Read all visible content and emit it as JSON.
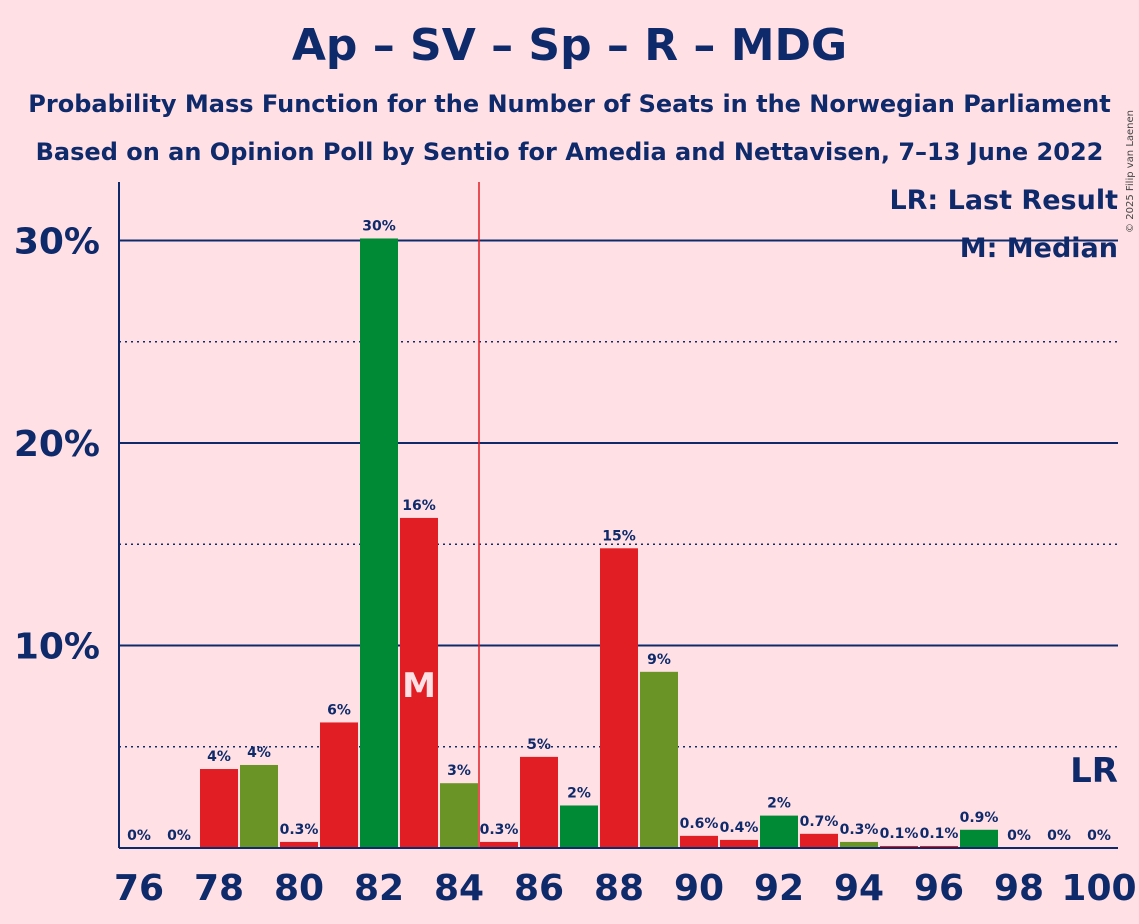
{
  "title": "Ap – SV – Sp – R – MDG",
  "subtitle1": "Probability Mass Function for the Number of Seats in the Norwegian Parliament",
  "subtitle2": "Based on an Opinion Poll by Sentio for Amedia and Nettavisen, 7–13 June 2022",
  "copyright": "© 2025 Filip van Laenen",
  "legend": {
    "lr": "LR: Last Result",
    "m": "M: Median"
  },
  "lr_marker_label": "LR",
  "median_marker_label": "M",
  "colors": {
    "red": "#e01e24",
    "green": "#008a35",
    "olive": "#6a9426",
    "axis": "#0f2a6b",
    "lr_line": "#e01e24"
  },
  "chart_data": {
    "type": "bar",
    "x": [
      76,
      77,
      78,
      79,
      80,
      81,
      82,
      83,
      84,
      85,
      86,
      87,
      88,
      89,
      90,
      91,
      92,
      93,
      94,
      95,
      96,
      97,
      98,
      99,
      100
    ],
    "values": [
      0,
      0,
      3.9,
      4.1,
      0.3,
      6.2,
      30.1,
      16.3,
      3.2,
      0.3,
      4.5,
      2.1,
      14.8,
      8.7,
      0.6,
      0.4,
      1.6,
      0.7,
      0.3,
      0.1,
      0.1,
      0.9,
      0,
      0,
      0
    ],
    "labels": [
      "0%",
      "0%",
      "4%",
      "4%",
      "0.3%",
      "6%",
      "30%",
      "16%",
      "3%",
      "0.3%",
      "5%",
      "2%",
      "15%",
      "9%",
      "0.6%",
      "0.4%",
      "2%",
      "0.7%",
      "0.3%",
      "0.1%",
      "0.1%",
      "0.9%",
      "0%",
      "0%",
      "0%"
    ],
    "bar_colors": [
      "red",
      "red",
      "red",
      "olive",
      "red",
      "red",
      "green",
      "red",
      "olive",
      "red",
      "red",
      "green",
      "red",
      "olive",
      "red",
      "red",
      "green",
      "red",
      "olive",
      "red",
      "red",
      "green",
      "red",
      "red",
      "red"
    ],
    "x_tick_labels": [
      "76",
      "78",
      "80",
      "82",
      "84",
      "86",
      "88",
      "90",
      "92",
      "94",
      "96",
      "98",
      "100"
    ],
    "y_tick_labels": [
      "10%",
      "20%",
      "30%"
    ],
    "ylim": [
      0,
      32.5
    ],
    "grid_solid": [
      10,
      20,
      30
    ],
    "grid_dotted": [
      5,
      15,
      25
    ],
    "median": 83,
    "last_result": 85
  }
}
